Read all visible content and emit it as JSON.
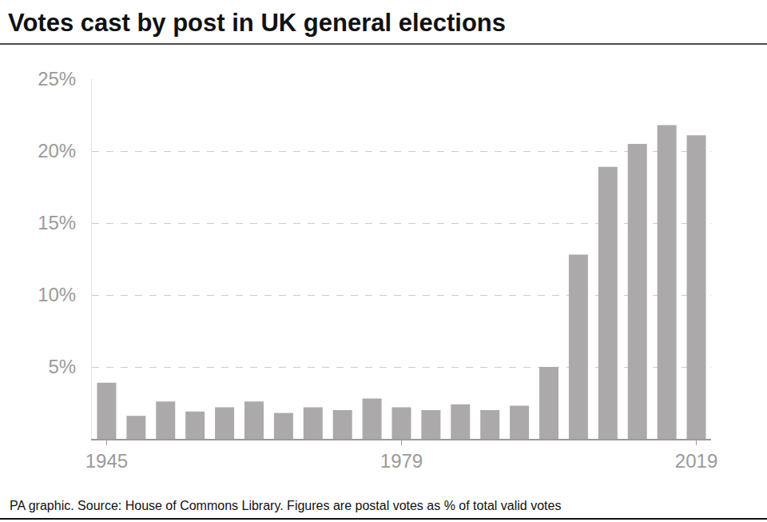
{
  "chart_data": {
    "type": "bar",
    "title": "Votes cast by post in UK general elections",
    "source": "PA graphic. Source: House of Commons Library. Figures are postal votes as % of total valid votes",
    "categories": [
      "1945",
      null,
      null,
      null,
      null,
      null,
      null,
      null,
      null,
      null,
      "1979",
      null,
      null,
      null,
      null,
      null,
      null,
      null,
      null,
      null,
      "2019"
    ],
    "values": [
      3.9,
      1.6,
      2.6,
      1.9,
      2.2,
      2.6,
      1.8,
      2.2,
      2.0,
      2.8,
      2.2,
      2.0,
      2.4,
      2.0,
      2.3,
      5.0,
      12.8,
      18.9,
      20.5,
      21.8,
      21.1
    ],
    "color": "#aba9aa",
    "ylim": [
      0,
      25
    ],
    "yticks": [
      {
        "value": 5,
        "label": "5%"
      },
      {
        "value": 10,
        "label": "10%"
      },
      {
        "value": 15,
        "label": "15%"
      },
      {
        "value": 20,
        "label": "20%"
      },
      {
        "value": 25,
        "label": "25%"
      }
    ],
    "grid": true
  }
}
